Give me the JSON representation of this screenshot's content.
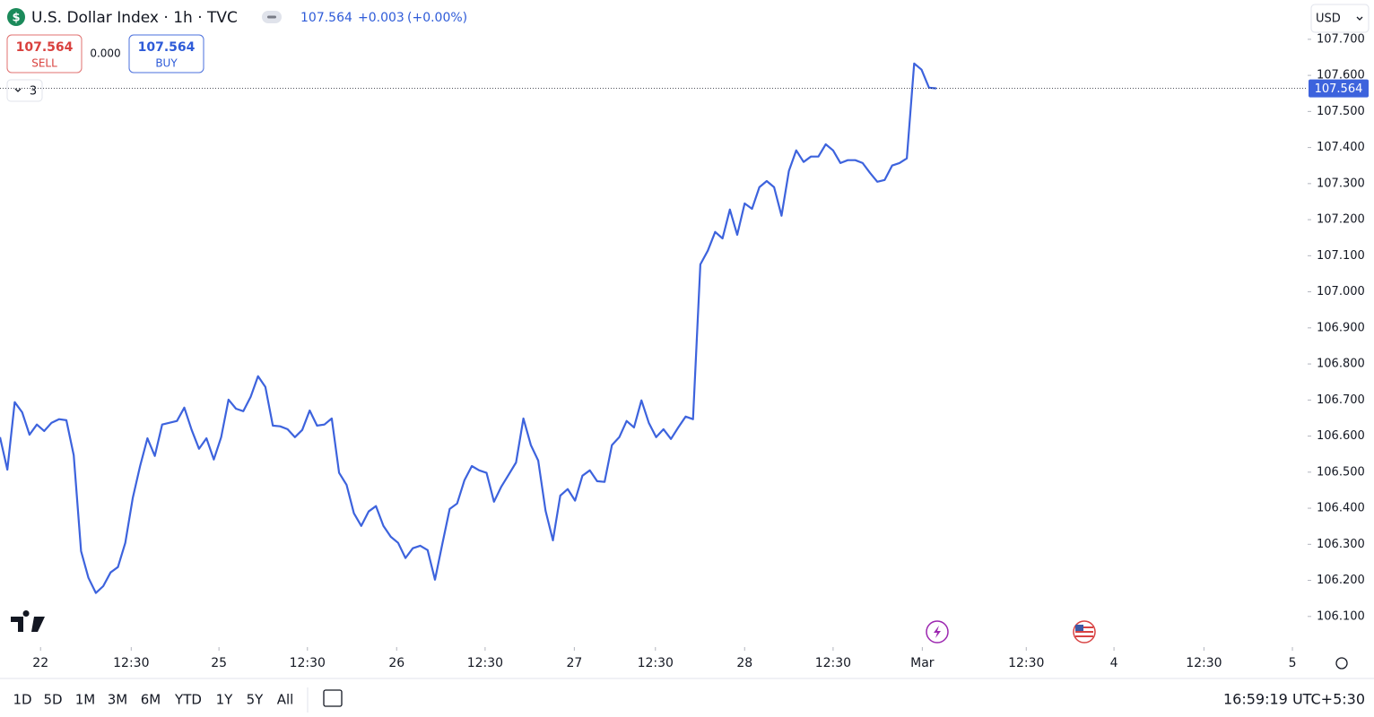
{
  "header": {
    "symbol_icon": "$",
    "title": "U.S. Dollar Index · 1h · TVC",
    "price": "107.564",
    "change": "+0.003",
    "change_pct": "(+0.00%)",
    "currency": "USD"
  },
  "trade": {
    "sell_price": "107.564",
    "sell_label": "SELL",
    "spread": "0.000",
    "buy_price": "107.564",
    "buy_label": "BUY",
    "indicators_count": "3"
  },
  "chart_data": {
    "type": "line",
    "color": "#3d63dd",
    "last_price_line": true,
    "values": [
      106.597,
      106.507,
      106.694,
      106.666,
      106.604,
      106.632,
      106.614,
      106.637,
      106.647,
      106.644,
      106.547,
      106.281,
      106.207,
      106.165,
      106.184,
      106.222,
      106.237,
      106.304,
      106.428,
      106.517,
      106.594,
      106.545,
      106.632,
      106.637,
      106.642,
      106.679,
      106.617,
      106.565,
      106.594,
      106.535,
      106.597,
      106.701,
      106.676,
      106.669,
      106.709,
      106.766,
      106.736,
      106.629,
      106.627,
      106.619,
      106.597,
      106.617,
      106.671,
      106.629,
      106.632,
      106.649,
      106.498,
      106.465,
      106.386,
      106.351,
      106.391,
      106.406,
      106.351,
      106.321,
      106.304,
      106.262,
      106.289,
      106.296,
      106.284,
      106.202,
      106.301,
      106.398,
      106.413,
      106.478,
      106.517,
      106.505,
      106.498,
      106.418,
      106.46,
      106.493,
      106.527,
      106.649,
      106.575,
      106.532,
      106.393,
      106.311,
      106.435,
      106.453,
      106.421,
      106.49,
      106.505,
      106.475,
      106.473,
      106.575,
      106.597,
      106.642,
      106.624,
      106.699,
      106.637,
      106.597,
      106.619,
      106.592,
      106.624,
      106.654,
      106.647,
      107.076,
      107.114,
      107.166,
      107.148,
      107.228,
      107.158,
      107.245,
      107.23,
      107.29,
      107.307,
      107.29,
      107.211,
      107.335,
      107.392,
      107.36,
      107.375,
      107.375,
      107.409,
      107.392,
      107.357,
      107.365,
      107.365,
      107.357,
      107.33,
      107.305,
      107.31,
      107.35,
      107.357,
      107.37,
      107.633,
      107.616,
      107.566,
      107.564
    ],
    "xlim": [
      0,
      177
    ],
    "xticks": [
      {
        "value": 5.5,
        "label": "22"
      },
      {
        "value": 17.8,
        "label": "12:30"
      },
      {
        "value": 29.7,
        "label": "25"
      },
      {
        "value": 41.7,
        "label": "12:30"
      },
      {
        "value": 53.8,
        "label": "26"
      },
      {
        "value": 65.8,
        "label": "12:30"
      },
      {
        "value": 77.9,
        "label": "27"
      },
      {
        "value": 88.9,
        "label": "12:30"
      },
      {
        "value": 101.0,
        "label": "28"
      },
      {
        "value": 113.0,
        "label": "12:30"
      },
      {
        "value": 125.1,
        "label": "Mar"
      },
      {
        "value": 139.2,
        "label": "12:30"
      },
      {
        "value": 151.1,
        "label": "4"
      },
      {
        "value": 163.3,
        "label": "12:30"
      },
      {
        "value": 175.3,
        "label": "5"
      }
    ],
    "ylim": [
      106.02,
      107.809
    ],
    "yticks": [
      {
        "value": 106.1,
        "label": "106.100"
      },
      {
        "value": 106.2,
        "label": "106.200"
      },
      {
        "value": 106.3,
        "label": "106.300"
      },
      {
        "value": 106.4,
        "label": "106.400"
      },
      {
        "value": 106.5,
        "label": "106.500"
      },
      {
        "value": 106.6,
        "label": "106.600"
      },
      {
        "value": 106.7,
        "label": "106.700"
      },
      {
        "value": 106.8,
        "label": "106.800"
      },
      {
        "value": 106.9,
        "label": "106.900"
      },
      {
        "value": 107.0,
        "label": "107.000"
      },
      {
        "value": 107.1,
        "label": "107.100"
      },
      {
        "value": 107.2,
        "label": "107.200"
      },
      {
        "value": 107.3,
        "label": "107.300"
      },
      {
        "value": 107.4,
        "label": "107.400"
      },
      {
        "value": 107.5,
        "label": "107.500"
      },
      {
        "value": 107.6,
        "label": "107.600"
      },
      {
        "value": 107.7,
        "label": "107.700"
      }
    ]
  },
  "toolbar": {
    "ranges": [
      "1D",
      "5D",
      "1M",
      "3M",
      "6M",
      "YTD",
      "1Y",
      "5Y",
      "All"
    ],
    "clock": "16:59:19 UTC+5:30"
  }
}
